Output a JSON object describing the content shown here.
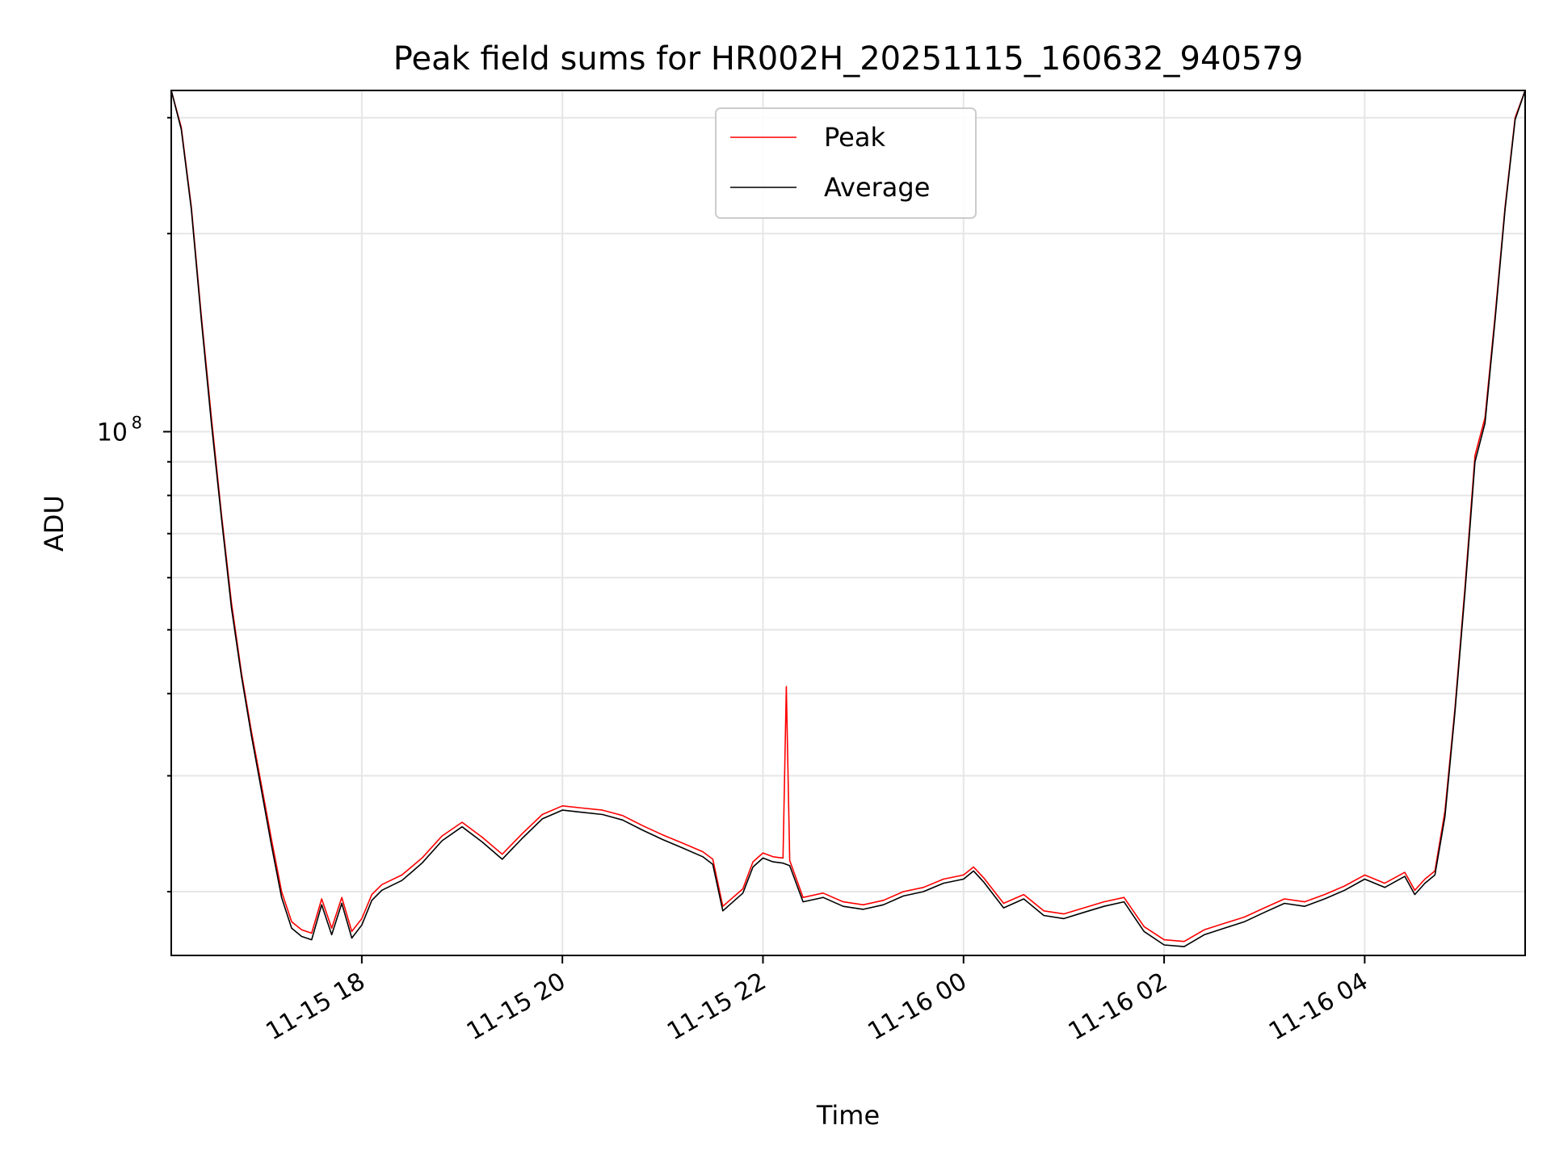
{
  "chart_data": {
    "type": "line",
    "title": "Peak field sums for HR002H_20251115_160632_940579",
    "xlabel": "Time",
    "ylabel": "ADU",
    "yscale": "log",
    "xlim": [
      "2025-11-15 16:06",
      "2025-11-16 05:36"
    ],
    "ylim": [
      16000000,
      330000000
    ],
    "x_ticks": [
      "11-15 18",
      "11-15 20",
      "11-15 22",
      "11-16 00",
      "11-16 02",
      "11-16 04"
    ],
    "y_ticks": [
      {
        "label_base": "10",
        "label_exp": "8",
        "value": 100000000
      }
    ],
    "grid": true,
    "legend": {
      "position": "upper center",
      "entries": [
        "Peak",
        "Average"
      ]
    },
    "series": [
      {
        "name": "Peak",
        "color": "#ff0000",
        "points": [
          [
            "2025-11-15 16:06",
            330000000
          ],
          [
            "2025-11-15 16:12",
            290000000
          ],
          [
            "2025-11-15 16:18",
            220000000
          ],
          [
            "2025-11-15 16:24",
            150000000
          ],
          [
            "2025-11-15 16:30",
            105000000
          ],
          [
            "2025-11-15 16:36",
            75000000
          ],
          [
            "2025-11-15 16:42",
            55000000
          ],
          [
            "2025-11-15 16:48",
            43000000
          ],
          [
            "2025-11-15 16:54",
            35000000
          ],
          [
            "2025-11-15 17:00",
            29000000
          ],
          [
            "2025-11-15 17:06",
            24000000
          ],
          [
            "2025-11-15 17:12",
            20000000
          ],
          [
            "2025-11-15 17:18",
            18000000
          ],
          [
            "2025-11-15 17:24",
            17500000
          ],
          [
            "2025-11-15 17:30",
            17300000
          ],
          [
            "2025-11-15 17:36",
            19500000
          ],
          [
            "2025-11-15 17:42",
            17600000
          ],
          [
            "2025-11-15 17:48",
            19600000
          ],
          [
            "2025-11-15 17:54",
            17400000
          ],
          [
            "2025-11-15 18:00",
            18200000
          ],
          [
            "2025-11-15 18:06",
            19800000
          ],
          [
            "2025-11-15 18:12",
            20500000
          ],
          [
            "2025-11-15 18:24",
            21200000
          ],
          [
            "2025-11-15 18:36",
            22500000
          ],
          [
            "2025-11-15 18:48",
            24300000
          ],
          [
            "2025-11-15 19:00",
            25500000
          ],
          [
            "2025-11-15 19:12",
            24200000
          ],
          [
            "2025-11-15 19:24",
            22800000
          ],
          [
            "2025-11-15 19:36",
            24500000
          ],
          [
            "2025-11-15 19:48",
            26200000
          ],
          [
            "2025-11-15 20:00",
            27000000
          ],
          [
            "2025-11-15 20:12",
            26800000
          ],
          [
            "2025-11-15 20:24",
            26600000
          ],
          [
            "2025-11-15 20:36",
            26100000
          ],
          [
            "2025-11-15 20:48",
            25200000
          ],
          [
            "2025-11-15 21:00",
            24400000
          ],
          [
            "2025-11-15 21:12",
            23700000
          ],
          [
            "2025-11-15 21:24",
            23000000
          ],
          [
            "2025-11-15 21:30",
            22400000
          ],
          [
            "2025-11-15 21:36",
            19000000
          ],
          [
            "2025-11-15 21:48",
            20200000
          ],
          [
            "2025-11-15 21:54",
            22200000
          ],
          [
            "2025-11-15 22:00",
            22900000
          ],
          [
            "2025-11-15 22:06",
            22600000
          ],
          [
            "2025-11-15 22:12",
            22500000
          ],
          [
            "2025-11-15 22:14",
            41000000
          ],
          [
            "2025-11-15 22:16",
            22300000
          ],
          [
            "2025-11-15 22:24",
            19600000
          ],
          [
            "2025-11-15 22:36",
            19900000
          ],
          [
            "2025-11-15 22:48",
            19300000
          ],
          [
            "2025-11-15 23:00",
            19100000
          ],
          [
            "2025-11-15 23:12",
            19400000
          ],
          [
            "2025-11-15 23:24",
            20000000
          ],
          [
            "2025-11-15 23:36",
            20300000
          ],
          [
            "2025-11-15 23:48",
            20900000
          ],
          [
            "2025-11-16 00:00",
            21200000
          ],
          [
            "2025-11-16 00:06",
            21800000
          ],
          [
            "2025-11-16 00:12",
            21000000
          ],
          [
            "2025-11-16 00:24",
            19200000
          ],
          [
            "2025-11-16 00:36",
            19800000
          ],
          [
            "2025-11-16 00:48",
            18700000
          ],
          [
            "2025-11-16 01:00",
            18500000
          ],
          [
            "2025-11-16 01:12",
            18900000
          ],
          [
            "2025-11-16 01:24",
            19300000
          ],
          [
            "2025-11-16 01:36",
            19600000
          ],
          [
            "2025-11-16 01:48",
            17700000
          ],
          [
            "2025-11-16 02:00",
            16900000
          ],
          [
            "2025-11-16 02:12",
            16800000
          ],
          [
            "2025-11-16 02:24",
            17500000
          ],
          [
            "2025-11-16 02:36",
            17900000
          ],
          [
            "2025-11-16 02:48",
            18300000
          ],
          [
            "2025-11-16 03:00",
            18900000
          ],
          [
            "2025-11-16 03:12",
            19500000
          ],
          [
            "2025-11-16 03:24",
            19300000
          ],
          [
            "2025-11-16 03:36",
            19800000
          ],
          [
            "2025-11-16 03:48",
            20400000
          ],
          [
            "2025-11-16 04:00",
            21200000
          ],
          [
            "2025-11-16 04:12",
            20600000
          ],
          [
            "2025-11-16 04:24",
            21400000
          ],
          [
            "2025-11-16 04:30",
            20100000
          ],
          [
            "2025-11-16 04:36",
            20900000
          ],
          [
            "2025-11-16 04:42",
            21500000
          ],
          [
            "2025-11-16 04:48",
            26500000
          ],
          [
            "2025-11-16 04:54",
            38000000
          ],
          [
            "2025-11-16 05:00",
            58000000
          ],
          [
            "2025-11-16 05:06",
            92000000
          ],
          [
            "2025-11-16 05:12",
            105000000
          ],
          [
            "2025-11-16 05:18",
            150000000
          ],
          [
            "2025-11-16 05:24",
            220000000
          ],
          [
            "2025-11-16 05:30",
            300000000
          ],
          [
            "2025-11-16 05:36",
            330000000
          ]
        ]
      },
      {
        "name": "Average",
        "color": "#000000",
        "points": [
          [
            "2025-11-15 16:06",
            330000000
          ],
          [
            "2025-11-15 16:12",
            288000000
          ],
          [
            "2025-11-15 16:18",
            218000000
          ],
          [
            "2025-11-15 16:24",
            148000000
          ],
          [
            "2025-11-15 16:30",
            103000000
          ],
          [
            "2025-11-15 16:36",
            74000000
          ],
          [
            "2025-11-15 16:42",
            54000000
          ],
          [
            "2025-11-15 16:48",
            42500000
          ],
          [
            "2025-11-15 16:54",
            34500000
          ],
          [
            "2025-11-15 17:00",
            28500000
          ],
          [
            "2025-11-15 17:06",
            23500000
          ],
          [
            "2025-11-15 17:12",
            19600000
          ],
          [
            "2025-11-15 17:18",
            17600000
          ],
          [
            "2025-11-15 17:24",
            17100000
          ],
          [
            "2025-11-15 17:30",
            16900000
          ],
          [
            "2025-11-15 17:36",
            19100000
          ],
          [
            "2025-11-15 17:42",
            17200000
          ],
          [
            "2025-11-15 17:48",
            19200000
          ],
          [
            "2025-11-15 17:54",
            17000000
          ],
          [
            "2025-11-15 18:00",
            17800000
          ],
          [
            "2025-11-15 18:06",
            19400000
          ],
          [
            "2025-11-15 18:12",
            20100000
          ],
          [
            "2025-11-15 18:24",
            20800000
          ],
          [
            "2025-11-15 18:36",
            22100000
          ],
          [
            "2025-11-15 18:48",
            23900000
          ],
          [
            "2025-11-15 19:00",
            25100000
          ],
          [
            "2025-11-15 19:12",
            23800000
          ],
          [
            "2025-11-15 19:24",
            22400000
          ],
          [
            "2025-11-15 19:36",
            24100000
          ],
          [
            "2025-11-15 19:48",
            25800000
          ],
          [
            "2025-11-15 20:00",
            26600000
          ],
          [
            "2025-11-15 20:12",
            26400000
          ],
          [
            "2025-11-15 20:24",
            26200000
          ],
          [
            "2025-11-15 20:36",
            25700000
          ],
          [
            "2025-11-15 20:48",
            24800000
          ],
          [
            "2025-11-15 21:00",
            24000000
          ],
          [
            "2025-11-15 21:12",
            23300000
          ],
          [
            "2025-11-15 21:24",
            22600000
          ],
          [
            "2025-11-15 21:30",
            22000000
          ],
          [
            "2025-11-15 21:36",
            18700000
          ],
          [
            "2025-11-15 21:48",
            19900000
          ],
          [
            "2025-11-15 21:54",
            21800000
          ],
          [
            "2025-11-15 22:00",
            22500000
          ],
          [
            "2025-11-15 22:06",
            22200000
          ],
          [
            "2025-11-15 22:12",
            22100000
          ],
          [
            "2025-11-15 22:14",
            22000000
          ],
          [
            "2025-11-15 22:16",
            21900000
          ],
          [
            "2025-11-15 22:24",
            19300000
          ],
          [
            "2025-11-15 22:36",
            19600000
          ],
          [
            "2025-11-15 22:48",
            19000000
          ],
          [
            "2025-11-15 23:00",
            18800000
          ],
          [
            "2025-11-15 23:12",
            19100000
          ],
          [
            "2025-11-15 23:24",
            19700000
          ],
          [
            "2025-11-15 23:36",
            20000000
          ],
          [
            "2025-11-15 23:48",
            20600000
          ],
          [
            "2025-11-16 00:00",
            20900000
          ],
          [
            "2025-11-16 00:06",
            21500000
          ],
          [
            "2025-11-16 00:12",
            20700000
          ],
          [
            "2025-11-16 00:24",
            18900000
          ],
          [
            "2025-11-16 00:36",
            19500000
          ],
          [
            "2025-11-16 00:48",
            18400000
          ],
          [
            "2025-11-16 01:00",
            18200000
          ],
          [
            "2025-11-16 01:12",
            18600000
          ],
          [
            "2025-11-16 01:24",
            19000000
          ],
          [
            "2025-11-16 01:36",
            19300000
          ],
          [
            "2025-11-16 01:48",
            17400000
          ],
          [
            "2025-11-16 02:00",
            16600000
          ],
          [
            "2025-11-16 02:12",
            16500000
          ],
          [
            "2025-11-16 02:24",
            17200000
          ],
          [
            "2025-11-16 02:36",
            17600000
          ],
          [
            "2025-11-16 02:48",
            18000000
          ],
          [
            "2025-11-16 03:00",
            18600000
          ],
          [
            "2025-11-16 03:12",
            19200000
          ],
          [
            "2025-11-16 03:24",
            19000000
          ],
          [
            "2025-11-16 03:36",
            19500000
          ],
          [
            "2025-11-16 03:48",
            20100000
          ],
          [
            "2025-11-16 04:00",
            20900000
          ],
          [
            "2025-11-16 04:12",
            20300000
          ],
          [
            "2025-11-16 04:24",
            21100000
          ],
          [
            "2025-11-16 04:30",
            19800000
          ],
          [
            "2025-11-16 04:36",
            20600000
          ],
          [
            "2025-11-16 04:42",
            21200000
          ],
          [
            "2025-11-16 04:48",
            26000000
          ],
          [
            "2025-11-16 04:54",
            37500000
          ],
          [
            "2025-11-16 05:00",
            57000000
          ],
          [
            "2025-11-16 05:06",
            90000000
          ],
          [
            "2025-11-16 05:12",
            103000000
          ],
          [
            "2025-11-16 05:18",
            148000000
          ],
          [
            "2025-11-16 05:24",
            218000000
          ],
          [
            "2025-11-16 05:30",
            298000000
          ],
          [
            "2025-11-16 05:36",
            330000000
          ]
        ]
      }
    ]
  }
}
